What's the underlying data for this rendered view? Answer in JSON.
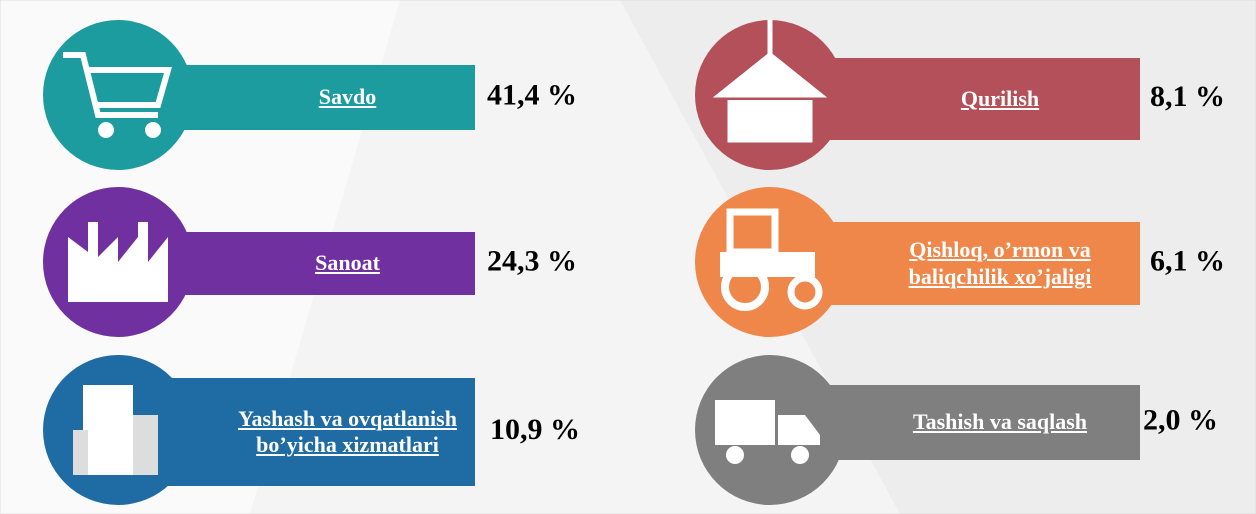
{
  "items": [
    {
      "label": "Savdo",
      "value": "41,4 %",
      "color": "#1c9c9e"
    },
    {
      "label": "Sanoat",
      "value": "24,3 %",
      "color": "#7030a0"
    },
    {
      "label": "Yashash va ovqatlanish bo’yicha xizmatlari",
      "value": "10,9 %",
      "color": "#1f6ba3"
    },
    {
      "label": "Qurilish",
      "value": "8,1 %",
      "color": "#b4505a"
    },
    {
      "label": "Qishloq, o’rmon va baliqchilik xo’jaligi",
      "value": "6,1 %",
      "color": "#f0874a"
    },
    {
      "label": "Tashish va saqlash",
      "value": "2,0 %",
      "color": "#7f7f7f"
    }
  ]
}
